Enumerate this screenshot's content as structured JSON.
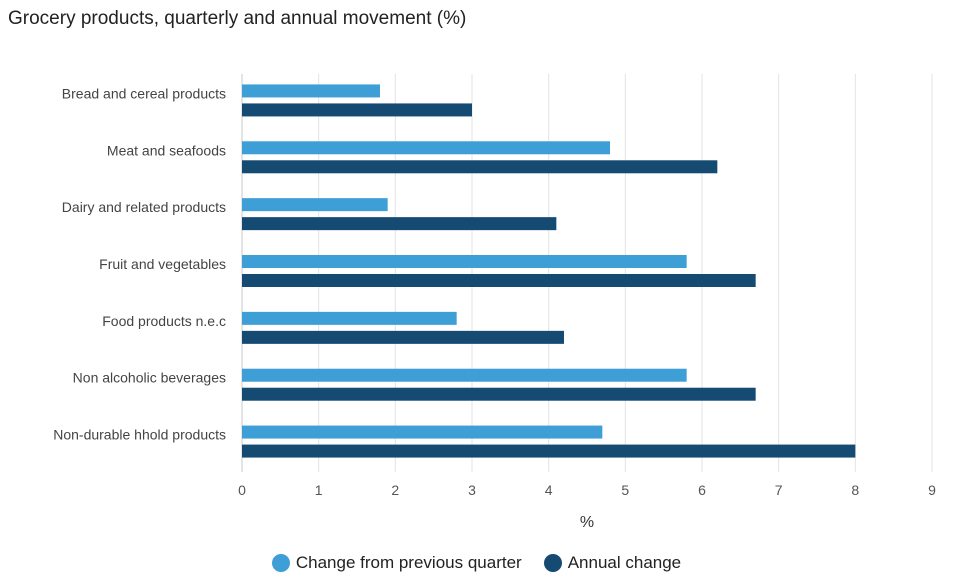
{
  "chart_data": {
    "type": "bar",
    "orientation": "horizontal",
    "title": "Grocery products, quarterly and annual movement (%)",
    "xlabel": "%",
    "ylabel": "",
    "xlim": [
      0,
      9
    ],
    "ticks": [
      "0",
      "1",
      "2",
      "3",
      "4",
      "5",
      "6",
      "7",
      "8",
      "9"
    ],
    "grid": true,
    "legend_position": "bottom",
    "categories": [
      "Bread and cereal products",
      "Meat and seafoods",
      "Dairy and related products",
      "Fruit and vegetables",
      "Food products n.e.c",
      "Non alcoholic beverages",
      "Non-durable hhold products"
    ],
    "series": [
      {
        "name": "Change from previous quarter",
        "color": "#3e9fd6",
        "values": [
          1.8,
          4.8,
          1.9,
          5.8,
          2.8,
          5.8,
          4.7
        ]
      },
      {
        "name": "Annual change",
        "color": "#154a72",
        "values": [
          3.0,
          6.2,
          4.1,
          6.7,
          4.2,
          6.7,
          8.0
        ]
      }
    ]
  }
}
